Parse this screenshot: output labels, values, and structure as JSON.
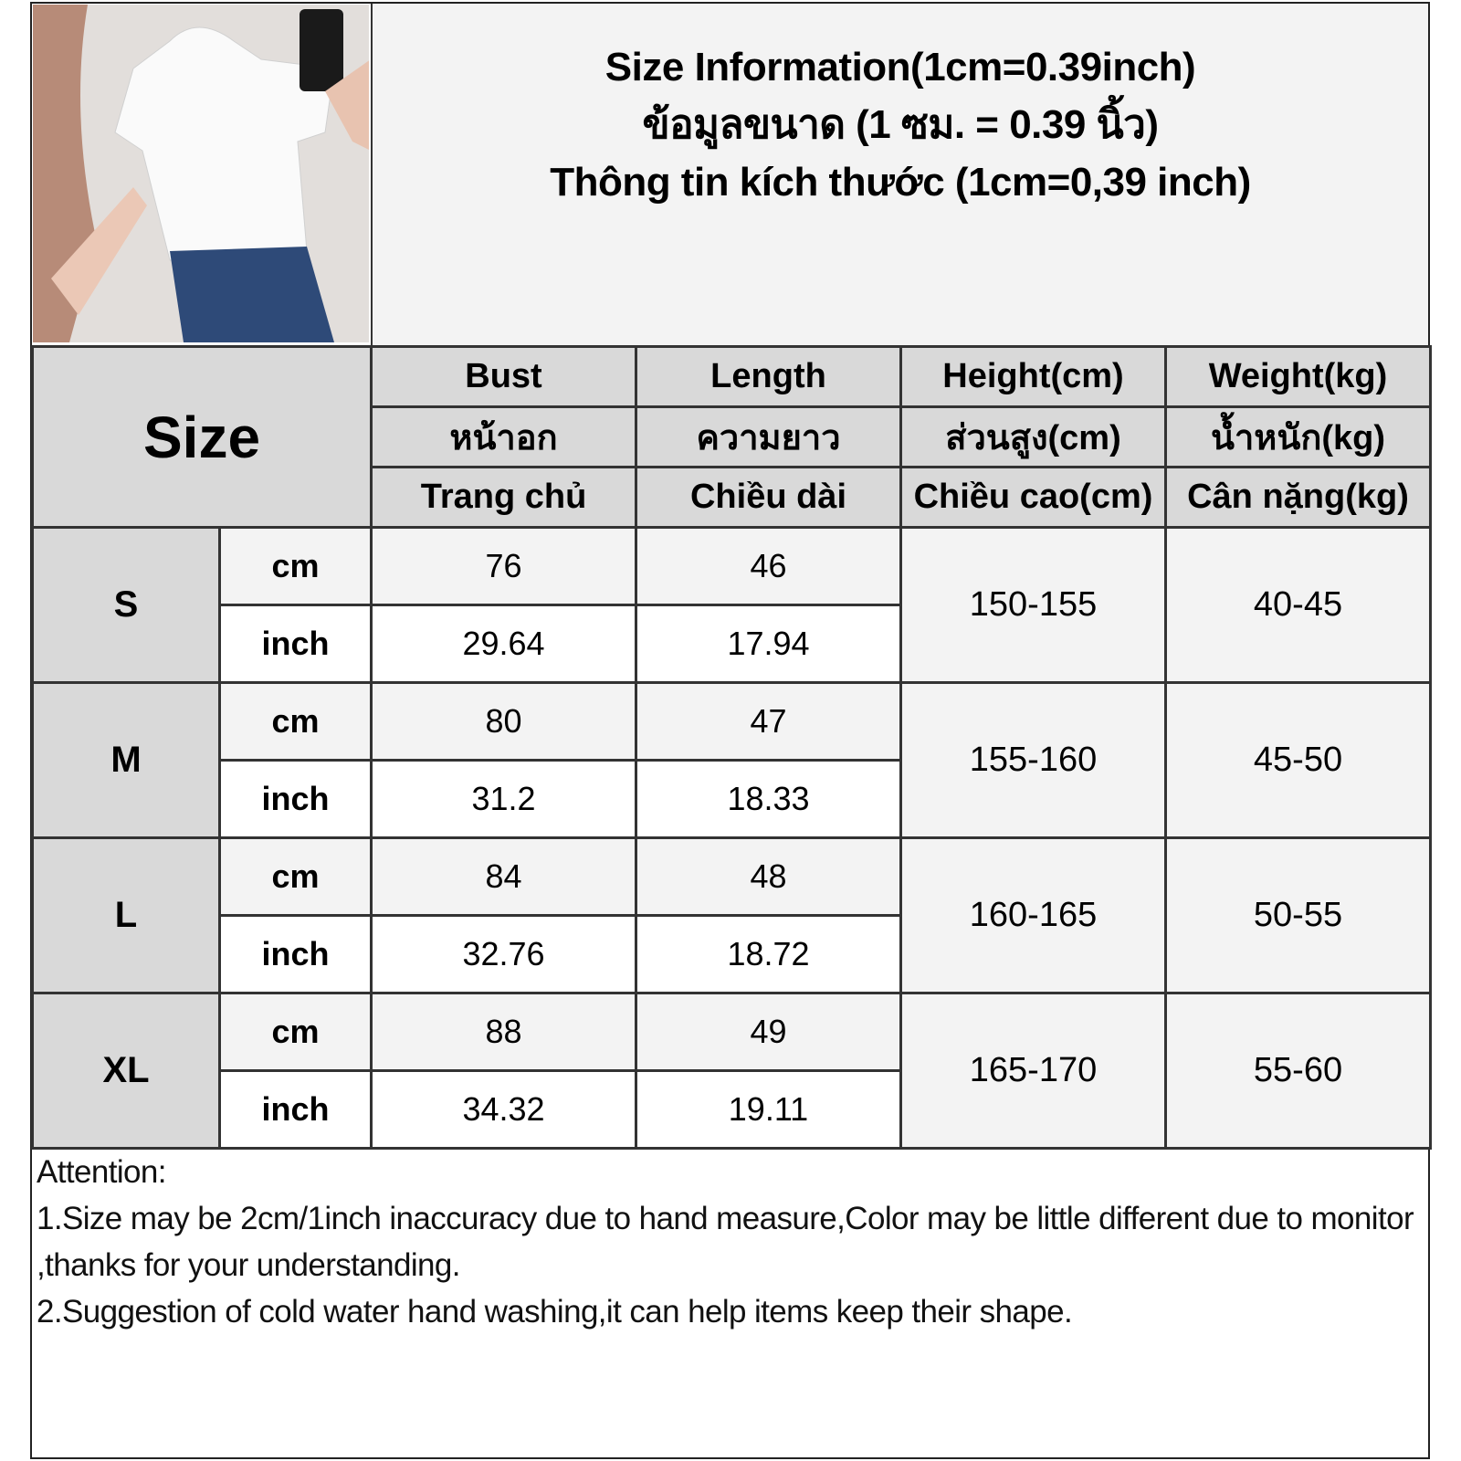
{
  "title": {
    "en": "Size Information(1cm=0.39inch)",
    "th": "ข้อมูลขนาด (1 ซม. = 0.39 นิ้ว)",
    "vi": "Thông tin kích thước (1cm=0,39 inch)"
  },
  "table": {
    "size_label": "Size",
    "columns": [
      {
        "en": "Bust",
        "th": "หน้าอก",
        "vi": "Trang chủ"
      },
      {
        "en": "Length",
        "th": "ความยาว",
        "vi": "Chiều dài"
      },
      {
        "en": "Height(cm)",
        "th": "ส่วนสูง(cm)",
        "vi": "Chiều cao(cm)"
      },
      {
        "en": "Weight(kg)",
        "th": "น้ำหนัก(kg)",
        "vi": "Cân nặng(kg)"
      }
    ],
    "unit_cm": "cm",
    "unit_inch": "inch",
    "rows": [
      {
        "size": "S",
        "bust_cm": "76",
        "length_cm": "46",
        "bust_inch": "29.64",
        "length_inch": "17.94",
        "height": "150-155",
        "weight": "40-45"
      },
      {
        "size": "M",
        "bust_cm": "80",
        "length_cm": "47",
        "bust_inch": "31.2",
        "length_inch": "18.33",
        "height": "155-160",
        "weight": "45-50"
      },
      {
        "size": "L",
        "bust_cm": "84",
        "length_cm": "48",
        "bust_inch": "32.76",
        "length_inch": "18.72",
        "height": "160-165",
        "weight": "50-55"
      },
      {
        "size": "XL",
        "bust_cm": "88",
        "length_cm": "49",
        "bust_inch": "34.32",
        "length_inch": "19.11",
        "height": "165-170",
        "weight": "55-60"
      }
    ]
  },
  "notes": {
    "heading": "Attention:",
    "items": [
      "1.Size may be 2cm/1inch inaccuracy due to hand measure,Color may be little different due to monitor ,thanks for your understanding.",
      "2.Suggestion of cold water hand washing,it can help items keep their shape."
    ]
  }
}
